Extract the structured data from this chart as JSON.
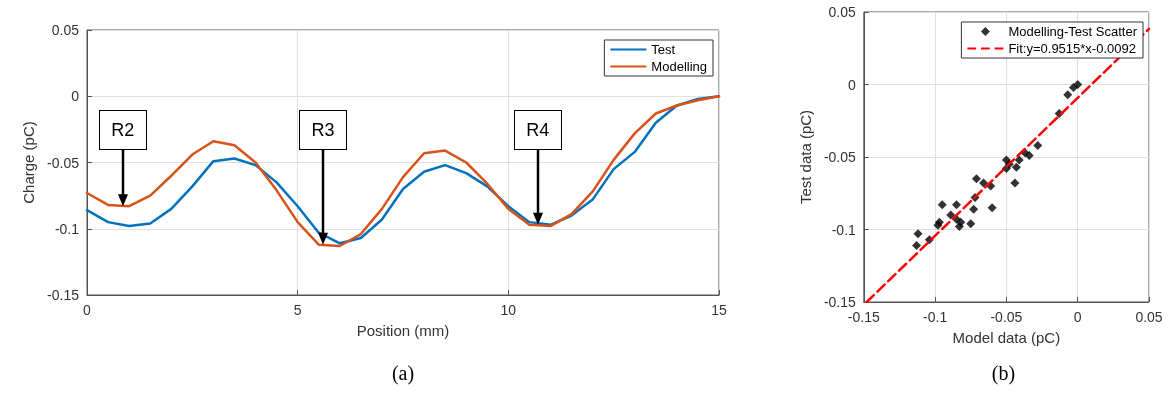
{
  "chart_data": [
    {
      "type": "line",
      "xlabel": "Position (mm)",
      "ylabel": "Charge (pC)",
      "x": [
        0,
        0.5,
        1,
        1.5,
        2,
        2.5,
        3,
        3.5,
        4,
        4.5,
        5,
        5.5,
        6,
        6.5,
        7,
        7.5,
        8,
        8.5,
        9,
        9.5,
        10,
        10.5,
        11,
        11.5,
        12,
        12.5,
        13,
        13.5,
        14,
        14.5,
        15
      ],
      "series": [
        {
          "name": "Test",
          "color": "#0072bd",
          "values": [
            -0.086,
            -0.095,
            -0.098,
            -0.096,
            -0.085,
            -0.068,
            -0.049,
            -0.047,
            -0.052,
            -0.065,
            -0.083,
            -0.103,
            -0.111,
            -0.107,
            -0.093,
            -0.07,
            -0.057,
            -0.052,
            -0.058,
            -0.068,
            -0.083,
            -0.095,
            -0.097,
            -0.09,
            -0.078,
            -0.055,
            -0.042,
            -0.02,
            -0.007,
            -0.002,
            0
          ]
        },
        {
          "name": "Modelling",
          "color": "#d95319",
          "values": [
            -0.073,
            -0.082,
            -0.083,
            -0.075,
            -0.06,
            -0.044,
            -0.034,
            -0.037,
            -0.05,
            -0.071,
            -0.095,
            -0.112,
            -0.113,
            -0.104,
            -0.085,
            -0.061,
            -0.043,
            -0.041,
            -0.05,
            -0.066,
            -0.085,
            -0.097,
            -0.098,
            -0.089,
            -0.072,
            -0.048,
            -0.028,
            -0.013,
            -0.007,
            -0.003,
            0
          ]
        }
      ],
      "xlim": [
        0,
        15
      ],
      "xticks": [
        0,
        5,
        10,
        15
      ],
      "ylim": [
        -0.15,
        0.05
      ],
      "yticks": [
        -0.15,
        -0.1,
        -0.05,
        0,
        0.05
      ],
      "grid": true,
      "legend": "top right",
      "marker": "none",
      "line_style": "solid",
      "annotations": [
        {
          "text": "R2",
          "x": 0.85,
          "y": -0.083
        },
        {
          "text": "R3",
          "x": 5.6,
          "y": -0.112
        },
        {
          "text": "R4",
          "x": 10.7,
          "y": -0.097
        },
        "(a)"
      ]
    },
    {
      "type": "scatter",
      "xlabel": "Model data (pC)",
      "ylabel": "Test data (pC)",
      "series": [
        {
          "name": "Modelling-Test Scatter",
          "color": "#000000",
          "marker": "diamond",
          "x": [
            -0.073,
            -0.082,
            -0.083,
            -0.075,
            -0.06,
            -0.044,
            -0.034,
            -0.037,
            -0.05,
            -0.071,
            -0.095,
            -0.112,
            -0.113,
            -0.104,
            -0.085,
            -0.061,
            -0.043,
            -0.041,
            -0.05,
            -0.066,
            -0.085,
            -0.097,
            -0.098,
            -0.089,
            -0.072,
            -0.048,
            -0.028,
            -0.013,
            -0.007,
            -0.003,
            0
          ],
          "values": [
            -0.086,
            -0.095,
            -0.098,
            -0.096,
            -0.085,
            -0.068,
            -0.049,
            -0.047,
            -0.052,
            -0.065,
            -0.083,
            -0.103,
            -0.111,
            -0.107,
            -0.093,
            -0.07,
            -0.057,
            -0.052,
            -0.058,
            -0.068,
            -0.083,
            -0.095,
            -0.097,
            -0.09,
            -0.078,
            -0.055,
            -0.042,
            -0.02,
            -0.007,
            -0.002,
            0
          ]
        },
        {
          "name": "Fit:y=0.9515*x-0.0092",
          "type": "line",
          "color": "#ff0000",
          "line_style": "dashed",
          "marker": "none",
          "x": [
            -0.148,
            0.05
          ],
          "values": [
            -0.15,
            0.0384
          ]
        }
      ],
      "xlim": [
        -0.15,
        0.05
      ],
      "xticks": [
        -0.15,
        -0.1,
        -0.05,
        0,
        0.05
      ],
      "ylim": [
        -0.15,
        0.05
      ],
      "yticks": [
        -0.15,
        -0.1,
        -0.05,
        0,
        0.05
      ],
      "grid": true,
      "legend": "top right",
      "annotations": [
        "(b)"
      ]
    }
  ]
}
